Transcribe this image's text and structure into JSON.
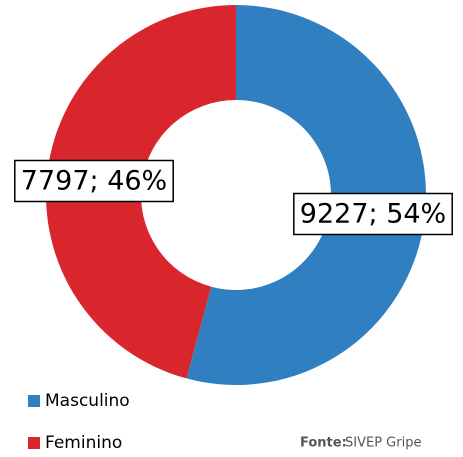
{
  "chart_data": {
    "type": "donut",
    "categories": [
      "Masculino",
      "Feminino"
    ],
    "values": [
      9227,
      7797
    ],
    "value_labels": [
      "9227; 54%",
      "7797; 46%"
    ],
    "colors": [
      "#2f7fc1",
      "#d9262c"
    ],
    "source_label": "Fonte:",
    "source": "SIVEP Gripe"
  }
}
